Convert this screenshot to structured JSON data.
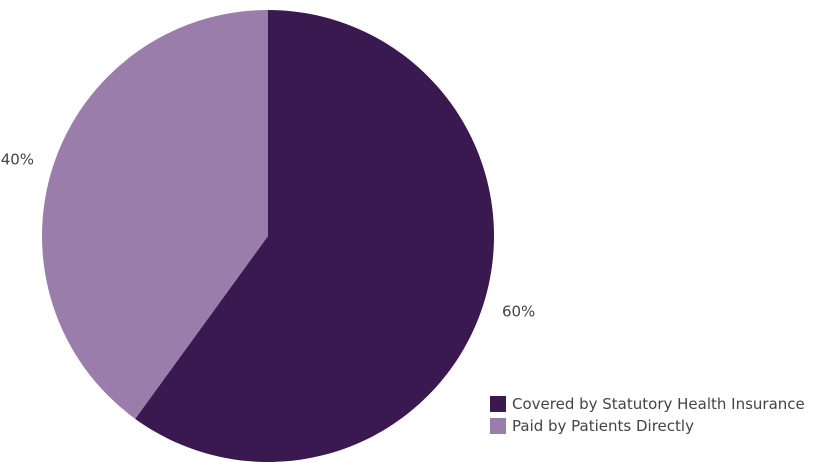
{
  "chart_data": {
    "type": "pie",
    "title": "",
    "slices": [
      {
        "name": "Covered by Statutory Health Insurance",
        "value": 60,
        "label": "60%",
        "color": "#3a1850"
      },
      {
        "name": "Paid by Patients Directly",
        "value": 40,
        "label": "40%",
        "color": "#9a7dab"
      }
    ],
    "start_angle": "12 o'clock",
    "direction": "clockwise",
    "legend": {
      "position": "bottom-right",
      "items": [
        {
          "label": "Covered by Statutory Health Insurance",
          "color": "#3a1850"
        },
        {
          "label": "Paid by Patients Directly",
          "color": "#9a7dab"
        }
      ]
    }
  }
}
